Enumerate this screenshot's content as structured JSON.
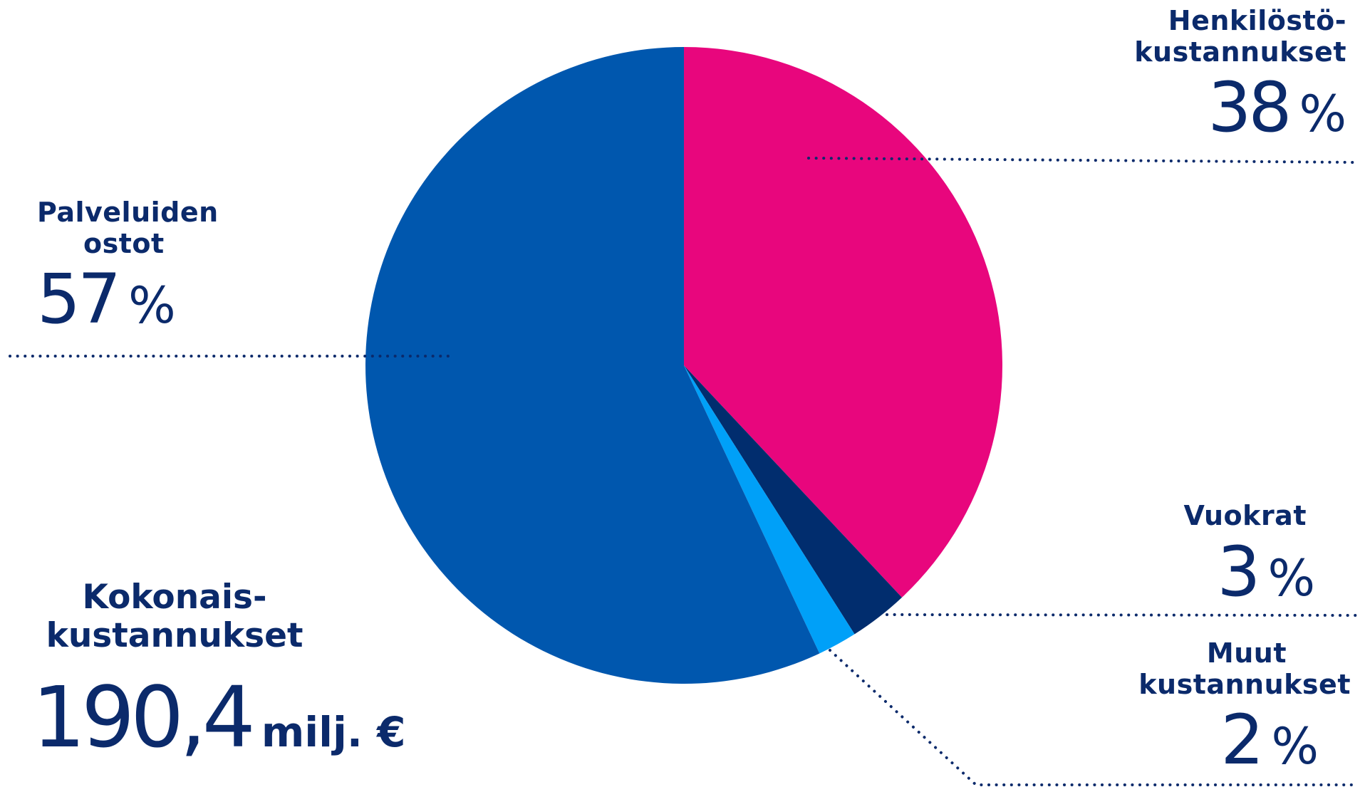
{
  "chart_data": {
    "type": "pie",
    "start_angle_deg": 0,
    "direction": "clockwise",
    "slices": [
      {
        "name": "Henkilöstö-\nkustannukset",
        "value": 38,
        "color": "#e8067d"
      },
      {
        "name": "Vuokrat",
        "value": 3,
        "color": "#012d6e"
      },
      {
        "name": "Muut kustannukset",
        "value": 2,
        "color": "#00a0f8"
      },
      {
        "name": "Palveluiden ostot",
        "value": 57,
        "color": "#0057ae"
      }
    ]
  },
  "labels": {
    "henkilosto": {
      "line1": "Henkilöstö-",
      "line2": "kustannukset",
      "pct": "38",
      "sign": "%"
    },
    "palvelut": {
      "line1": "Palveluiden",
      "line2": "ostot",
      "pct": "57",
      "sign": "%"
    },
    "vuokrat": {
      "line1": "Vuokrat",
      "pct": "3",
      "sign": "%"
    },
    "muut": {
      "line1": "Muut",
      "line2": "kustannukset",
      "pct": "2",
      "sign": "%"
    }
  },
  "total": {
    "line1": "Kokonais-",
    "line2": "kustannukset",
    "value": "190,4",
    "unit": "milj. €"
  },
  "colors": {
    "text": "#0b2a6b",
    "leader": "#0b2a6b"
  }
}
